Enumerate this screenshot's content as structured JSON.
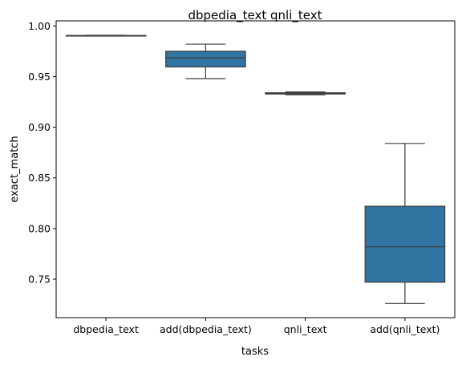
{
  "chart_data": {
    "type": "box",
    "title": "dbpedia_text qnli_text",
    "xlabel": "tasks",
    "ylabel": "exact_match",
    "ylim": [
      0.712,
      1.005
    ],
    "yticks": [
      0.75,
      0.8,
      0.85,
      0.9,
      0.95,
      1.0
    ],
    "ytick_labels": [
      "0.75",
      "0.80",
      "0.85",
      "0.90",
      "0.95",
      "1.00"
    ],
    "categories": [
      "dbpedia_text",
      "add(dbpedia_text)",
      "qnli_text",
      "add(qnli_text)"
    ],
    "boxes": [
      {
        "whislo": 0.9902,
        "q1": 0.9903,
        "med": 0.9904,
        "q3": 0.9906,
        "whishi": 0.9908
      },
      {
        "whislo": 0.948,
        "q1": 0.9595,
        "med": 0.9685,
        "q3": 0.975,
        "whishi": 0.982
      },
      {
        "whislo": 0.932,
        "q1": 0.9328,
        "med": 0.9334,
        "q3": 0.934,
        "whishi": 0.9348
      },
      {
        "whislo": 0.726,
        "q1": 0.747,
        "med": 0.782,
        "q3": 0.822,
        "whishi": 0.884
      }
    ],
    "box_color": "#3274a1",
    "line_color": "#3d3d3d",
    "grid": false,
    "legend": "none"
  }
}
